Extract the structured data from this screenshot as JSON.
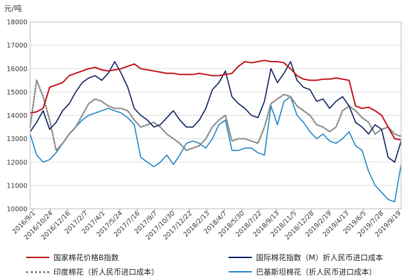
{
  "chart_data": {
    "type": "line",
    "ylabel": "元/吨",
    "ylim": [
      10000,
      18000
    ],
    "yticks": [
      10000,
      11000,
      12000,
      13000,
      14000,
      15000,
      16000,
      17000,
      18000
    ],
    "xticks": [
      "2016/9/1",
      "2016/10/24",
      "2016/12/16",
      "2017/2/7",
      "2017/4/1",
      "2017/5/24",
      "2017/7/16",
      "2017/9/7",
      "2017/10/30",
      "2017/12/22",
      "2018/2/13",
      "2018/4/7",
      "2018/5/30",
      "2018/7/22",
      "2018/9/13",
      "2018/11/5",
      "2018/12/28",
      "2019/2/19",
      "2019/4/13",
      "2019/6/5",
      "2019/7/28",
      "2019/9/19"
    ],
    "grid": true,
    "legend_position": "bottom",
    "colors": {
      "cc_index": "#c0141c",
      "intl_m": "#0b1f5e",
      "india": "#8a8a8a",
      "pakistan": "#1f86c6"
    },
    "series": [
      {
        "key": "cc_index",
        "name": "国家棉花价格B指数",
        "style": "solid",
        "values": [
          14100,
          14150,
          14300,
          15200,
          15300,
          15400,
          15700,
          15800,
          15900,
          16000,
          16050,
          15950,
          15900,
          15950,
          16000,
          16100,
          16200,
          16000,
          15950,
          15900,
          15850,
          15800,
          15800,
          15750,
          15750,
          15750,
          15800,
          15750,
          15700,
          15700,
          15750,
          15800,
          16100,
          16300,
          16250,
          16300,
          16350,
          16300,
          16300,
          16250,
          16000,
          15700,
          15550,
          15500,
          15500,
          15550,
          15550,
          15600,
          15550,
          15500,
          14400,
          14300,
          14350,
          14200,
          14000,
          13500,
          13000,
          12950
        ]
      },
      {
        "key": "intl_m",
        "name": "国际棉花指数（M）折人民币进口成本",
        "style": "solid",
        "values": [
          13300,
          13700,
          14200,
          13400,
          13700,
          14200,
          14500,
          15000,
          15400,
          15600,
          15700,
          15500,
          15800,
          16300,
          15800,
          15200,
          14300,
          14000,
          13800,
          13500,
          13600,
          13900,
          14200,
          13800,
          13500,
          13500,
          13800,
          14300,
          15100,
          15400,
          15900,
          14800,
          14500,
          14300,
          14000,
          13900,
          14600,
          16000,
          15400,
          15800,
          16300,
          15500,
          15200,
          15100,
          14600,
          14700,
          14300,
          14600,
          14800,
          14400,
          13700,
          13500,
          13200,
          13600,
          13400,
          12200,
          12000,
          12900
        ]
      },
      {
        "key": "india",
        "name": "印度棉花（折人民币进口成本）",
        "style": "dotted",
        "values": [
          13500,
          15500,
          14800,
          13800,
          12500,
          12800,
          13200,
          13500,
          14000,
          14500,
          14700,
          14600,
          14400,
          14300,
          14300,
          14200,
          13800,
          13500,
          13600,
          13700,
          13500,
          13200,
          13000,
          12800,
          12500,
          12600,
          12700,
          13000,
          13500,
          13800,
          14000,
          12900,
          13000,
          13000,
          12900,
          12800,
          13500,
          14500,
          14700,
          14900,
          14800,
          14400,
          14200,
          14000,
          13600,
          13500,
          13300,
          13500,
          14200,
          14400,
          14200,
          13900,
          13700,
          13200,
          13400,
          13500,
          13200,
          13100
        ]
      },
      {
        "key": "pakistan",
        "name": "巴基斯坦棉花（折人民币进口成本）",
        "style": "solid",
        "values": [
          13200,
          12300,
          12000,
          12100,
          12400,
          12800,
          13200,
          13500,
          13800,
          14000,
          14100,
          14200,
          14300,
          14200,
          14100,
          13900,
          13600,
          12200,
          12000,
          11800,
          12000,
          12300,
          11900,
          12300,
          12800,
          12900,
          12800,
          12600,
          13000,
          13600,
          13800,
          12500,
          12500,
          12600,
          12600,
          12400,
          12300,
          14400,
          13600,
          14600,
          14800,
          14000,
          13700,
          13300,
          13000,
          13200,
          12900,
          12800,
          13000,
          13300,
          12700,
          12500,
          11600,
          11000,
          10700,
          10400,
          10300,
          11900
        ]
      }
    ]
  }
}
